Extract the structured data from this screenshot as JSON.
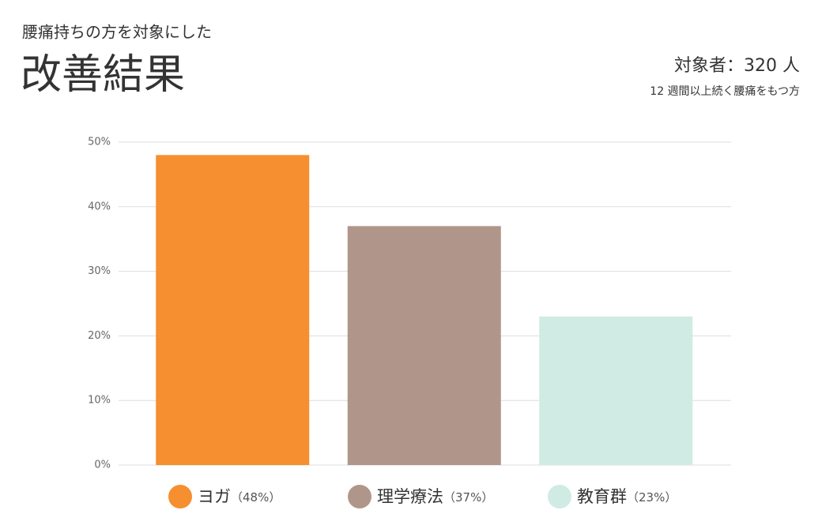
{
  "chart_data": {
    "type": "bar",
    "subtitle": "腰痛持ちの方を対象にした",
    "title": "改善結果",
    "note": "対象者：320 人",
    "note_sub": "12 週間以上続く腰痛をもつ方",
    "categories": [
      "ヨガ",
      "理学療法",
      "教育群"
    ],
    "values": [
      48,
      37,
      23
    ],
    "value_labels": [
      "（48%）",
      "（37%）",
      "（23%）"
    ],
    "colors": [
      "#f68f2f",
      "#b0968a",
      "#d0ebe3"
    ],
    "ylim": [
      0,
      50
    ],
    "yticks": [
      {
        "value": 0,
        "label": "0%"
      },
      {
        "value": 10,
        "label": "10%"
      },
      {
        "value": 20,
        "label": "20%"
      },
      {
        "value": 30,
        "label": "30%"
      },
      {
        "value": 40,
        "label": "40%"
      },
      {
        "value": 50,
        "label": "50%"
      }
    ],
    "grid": true
  }
}
